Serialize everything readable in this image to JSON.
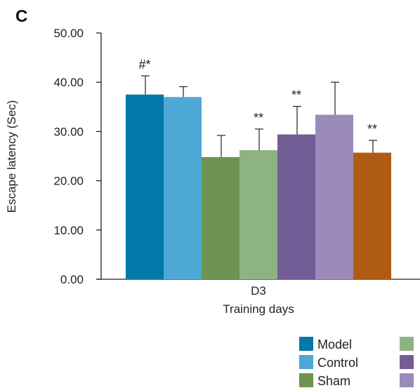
{
  "panel_label": "C",
  "chart_data": {
    "type": "bar",
    "title": "",
    "xlabel": "Training days",
    "ylabel": "Escape latency (Sec)",
    "ylim": [
      0,
      50
    ],
    "yticks": [
      "0.00",
      "10.00",
      "20.00",
      "30.00",
      "40.00",
      "50.00"
    ],
    "categories": [
      "D3"
    ],
    "grid": false,
    "legend_position": "bottom-right",
    "series": [
      {
        "name": "Model",
        "color": "#0379a9",
        "value": 37.5,
        "error": 3.8,
        "annotation": "#*"
      },
      {
        "name": "Control",
        "color": "#4ea8d5",
        "value": 37.0,
        "error": 2.1,
        "annotation": ""
      },
      {
        "name": "Sham",
        "color": "#6e9354",
        "value": 24.8,
        "error": 4.4,
        "annotation": ""
      },
      {
        "name": "",
        "color": "#8db383",
        "value": 26.2,
        "error": 4.3,
        "annotation": "**"
      },
      {
        "name": "",
        "color": "#735d97",
        "value": 29.4,
        "error": 5.7,
        "annotation": "**"
      },
      {
        "name": "",
        "color": "#9a8bba",
        "value": 33.4,
        "error": 6.6,
        "annotation": ""
      },
      {
        "name": "",
        "color": "#b05b14",
        "value": 25.7,
        "error": 2.5,
        "annotation": "**"
      }
    ]
  }
}
